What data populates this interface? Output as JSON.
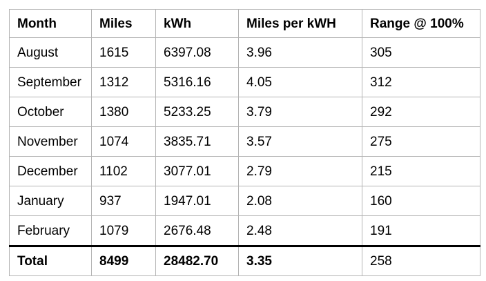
{
  "chart_data": {
    "type": "table",
    "title": "",
    "columns": [
      "Month",
      "Miles",
      "kWh",
      "Miles per kWH",
      "Range @ 100%"
    ],
    "rows": [
      [
        "August",
        "1615",
        "6397.08",
        "3.96",
        "305"
      ],
      [
        "September",
        "1312",
        "5316.16",
        "4.05",
        "312"
      ],
      [
        "October",
        "1380",
        "5233.25",
        "3.79",
        "292"
      ],
      [
        "November",
        "1074",
        "3835.71",
        "3.57",
        "275"
      ],
      [
        "December",
        "1102",
        "3077.01",
        "2.79",
        "215"
      ],
      [
        "January",
        "937",
        "1947.01",
        "2.08",
        "160"
      ],
      [
        "February",
        "1079",
        "2676.48",
        "2.48",
        "191"
      ]
    ],
    "total": [
      "Total",
      "8499",
      "28482.70",
      "3.35",
      "258"
    ]
  },
  "style": {
    "grid_border_color": "#b3b3b3",
    "total_rule_color": "#000000",
    "text_color": "#000000",
    "background_color": "#ffffff"
  }
}
